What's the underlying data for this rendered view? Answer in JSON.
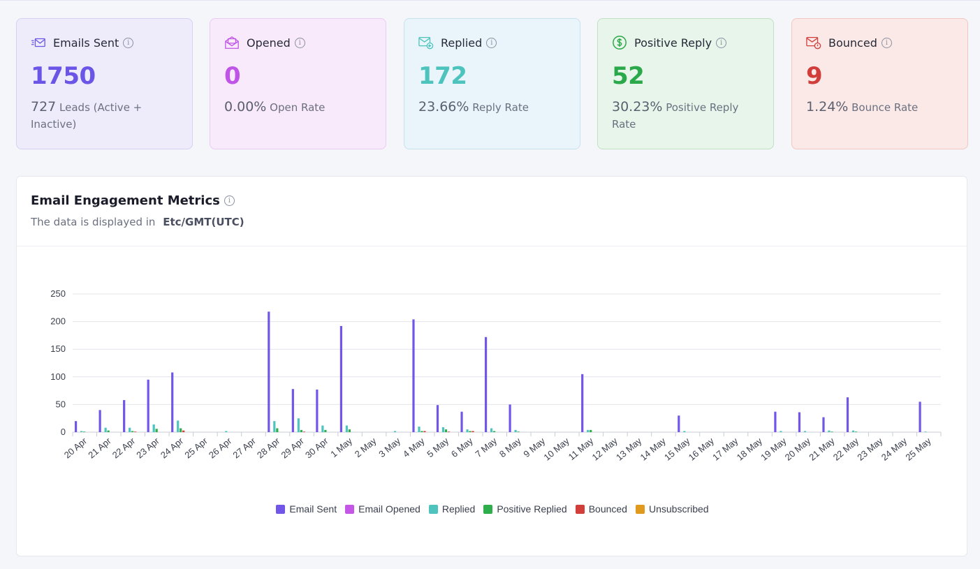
{
  "stats": [
    {
      "title": "Emails Sent",
      "value": "1750",
      "sub_num": "727",
      "sub_text": "Leads (Active + Inactive)",
      "icon": "email-sent-icon"
    },
    {
      "title": "Opened",
      "value": "0",
      "sub_num": "0.00%",
      "sub_text": "Open Rate",
      "icon": "email-opened-icon"
    },
    {
      "title": "Replied",
      "value": "172",
      "sub_num": "23.66%",
      "sub_text": "Reply Rate",
      "icon": "email-replied-icon"
    },
    {
      "title": "Positive Reply",
      "value": "52",
      "sub_num": "30.23%",
      "sub_text": "Positive Reply Rate",
      "icon": "dollar-circle-icon"
    },
    {
      "title": "Bounced",
      "value": "9",
      "sub_num": "1.24%",
      "sub_text": "Bounce Rate",
      "icon": "email-bounced-icon"
    }
  ],
  "panel": {
    "title": "Email Engagement Metrics",
    "subtitle": "The data is displayed in",
    "timezone": "Etc/GMT(UTC)"
  },
  "chart_data": {
    "type": "bar",
    "ylim": [
      0,
      250
    ],
    "yticks": [
      0,
      50,
      100,
      150,
      200,
      250
    ],
    "grid": true,
    "legend_position": "bottom",
    "categories": [
      "20 Apr",
      "21 Apr",
      "22 Apr",
      "23 Apr",
      "24 Apr",
      "25 Apr",
      "26 Apr",
      "27 Apr",
      "28 Apr",
      "29 Apr",
      "30 Apr",
      "1 May",
      "2 May",
      "3 May",
      "4 May",
      "5 May",
      "6 May",
      "7 May",
      "8 May",
      "9 May",
      "10 May",
      "11 May",
      "12 May",
      "13 May",
      "14 May",
      "15 May",
      "16 May",
      "17 May",
      "18 May",
      "19 May",
      "20 May",
      "21 May",
      "22 May",
      "23 May",
      "24 May",
      "25 May"
    ],
    "series": [
      {
        "name": "Email Sent",
        "color": "#7256e8",
        "values": [
          20,
          40,
          58,
          95,
          108,
          0,
          0,
          0,
          218,
          78,
          77,
          192,
          0,
          0,
          204,
          49,
          37,
          172,
          50,
          0,
          0,
          105,
          0,
          0,
          0,
          30,
          0,
          0,
          0,
          37,
          36,
          27,
          63,
          0,
          0,
          55
        ]
      },
      {
        "name": "Email Opened",
        "color": "#c457e6",
        "values": [
          0,
          0,
          0,
          0,
          0,
          0,
          0,
          0,
          0,
          0,
          0,
          0,
          0,
          0,
          0,
          0,
          0,
          0,
          0,
          0,
          0,
          0,
          0,
          0,
          0,
          0,
          0,
          0,
          0,
          0,
          0,
          0,
          0,
          0,
          0,
          0
        ]
      },
      {
        "name": "Replied",
        "color": "#4fc4be",
        "values": [
          2,
          8,
          8,
          14,
          21,
          0,
          2,
          0,
          20,
          25,
          12,
          12,
          0,
          2,
          10,
          9,
          5,
          7,
          4,
          0,
          0,
          4,
          0,
          0,
          0,
          2,
          0,
          0,
          0,
          2,
          2,
          3,
          3,
          0,
          0,
          1
        ]
      },
      {
        "name": "Positive Replied",
        "color": "#2fae4c",
        "values": [
          1,
          3,
          2,
          6,
          7,
          0,
          0,
          0,
          7,
          4,
          4,
          5,
          0,
          0,
          2,
          5,
          2,
          2,
          1,
          0,
          0,
          4,
          0,
          0,
          0,
          0,
          0,
          0,
          0,
          0,
          0,
          1,
          1,
          0,
          0,
          0
        ]
      },
      {
        "name": "Bounced",
        "color": "#d23f3b",
        "values": [
          0,
          0,
          1,
          0,
          3,
          0,
          0,
          0,
          0,
          1,
          0,
          0,
          0,
          0,
          2,
          1,
          2,
          0,
          0,
          0,
          0,
          0,
          0,
          0,
          0,
          0,
          0,
          0,
          0,
          0,
          0,
          0,
          0,
          0,
          0,
          0
        ]
      },
      {
        "name": "Unsubscribed",
        "color": "#e09a1d",
        "values": [
          0,
          0,
          0,
          0,
          0,
          0,
          0,
          0,
          0,
          0,
          0,
          0,
          0,
          0,
          0,
          0,
          0,
          0,
          0,
          0,
          0,
          0,
          0,
          0,
          0,
          0,
          0,
          0,
          0,
          0,
          0,
          0,
          0,
          0,
          0,
          0
        ]
      }
    ]
  }
}
